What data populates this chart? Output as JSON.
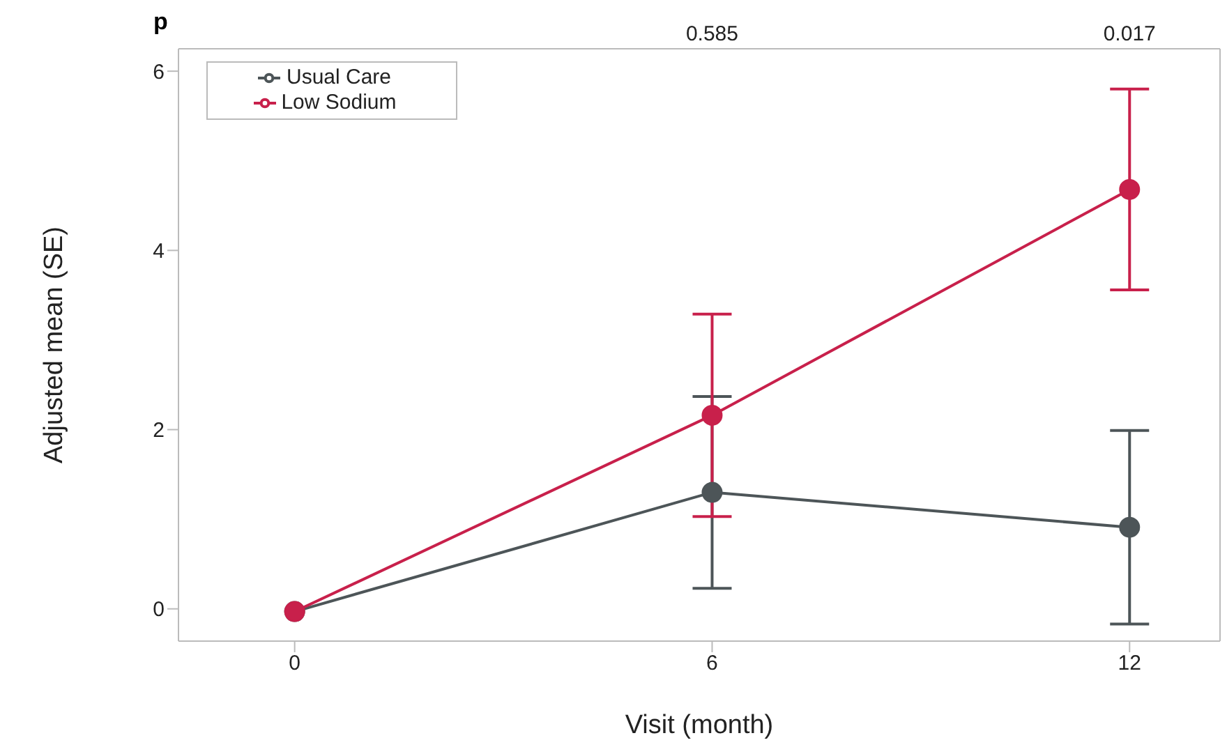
{
  "chart_data": {
    "type": "line",
    "xlabel": "Visit (month)",
    "ylabel": "Adjusted mean (SE)",
    "x": [
      0,
      6,
      12
    ],
    "series": [
      {
        "name": "Usual Care",
        "color": "#4d5558",
        "values": [
          -0.03,
          1.3,
          0.91
        ],
        "errors": [
          null,
          1.07,
          1.08
        ]
      },
      {
        "name": "Low Sodium",
        "color": "#c8204b",
        "values": [
          -0.03,
          2.16,
          4.68
        ],
        "errors": [
          null,
          1.13,
          1.12
        ]
      }
    ],
    "xlim": [
      -1.67,
      13.3
    ],
    "xticks": [
      0,
      6,
      12
    ],
    "ylim": [
      -0.36,
      6.25
    ],
    "yticks": [
      0,
      2,
      4,
      6
    ],
    "annotations": [
      "p",
      "0.585",
      "0.017"
    ],
    "legend": "top left",
    "marker": "circle",
    "line_style": "solid",
    "grid": false
  }
}
